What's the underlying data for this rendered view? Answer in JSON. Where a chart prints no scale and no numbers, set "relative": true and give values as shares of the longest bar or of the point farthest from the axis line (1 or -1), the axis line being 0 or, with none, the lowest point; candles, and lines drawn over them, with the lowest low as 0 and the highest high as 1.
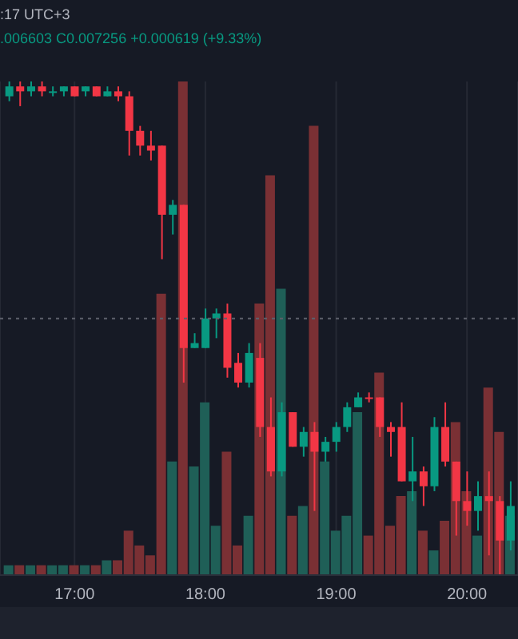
{
  "chart_data": {
    "type": "candlestick",
    "relative": true,
    "annotations": [
      ":17 UTC+3",
      ".006603 C0.007256 +0.000619 (+9.33%)"
    ],
    "x": [
      16.5,
      16.583,
      16.667,
      16.75,
      16.833,
      16.917,
      17,
      17.083,
      17.167,
      17.25,
      17.333,
      17.417,
      17.5,
      17.583,
      17.667,
      17.75,
      17.833,
      17.917,
      18,
      18.083,
      18.167,
      18.25,
      18.333,
      18.417,
      18.5,
      18.583,
      18.667,
      18.75,
      18.833,
      18.917,
      19,
      19.083,
      19.167,
      19.25,
      19.333,
      19.417,
      19.5,
      19.583,
      19.667,
      19.75,
      19.833,
      19.917,
      20,
      20.083,
      20.167,
      20.25,
      20.333
    ],
    "ohlc": [
      [
        0.97,
        1.0,
        0.96,
        0.99
      ],
      [
        0.99,
        1.0,
        0.95,
        0.98
      ],
      [
        0.98,
        1.0,
        0.97,
        0.99
      ],
      [
        0.99,
        1.0,
        0.97,
        0.98
      ],
      [
        0.98,
        0.99,
        0.97,
        0.98
      ],
      [
        0.98,
        0.99,
        0.97,
        0.99
      ],
      [
        0.99,
        0.99,
        0.97,
        0.97
      ],
      [
        0.98,
        0.99,
        0.97,
        0.99
      ],
      [
        0.99,
        0.99,
        0.97,
        0.97
      ],
      [
        0.97,
        0.99,
        0.97,
        0.98
      ],
      [
        0.98,
        0.99,
        0.96,
        0.97
      ],
      [
        0.97,
        0.98,
        0.85,
        0.9
      ],
      [
        0.9,
        0.91,
        0.85,
        0.87
      ],
      [
        0.87,
        0.9,
        0.84,
        0.86
      ],
      [
        0.87,
        0.87,
        0.64,
        0.73
      ],
      [
        0.73,
        0.76,
        0.69,
        0.75
      ],
      [
        0.75,
        0.75,
        0.39,
        0.46
      ],
      [
        0.46,
        0.49,
        0.46,
        0.47
      ],
      [
        0.46,
        0.54,
        0.46,
        0.52
      ],
      [
        0.52,
        0.54,
        0.48,
        0.53
      ],
      [
        0.53,
        0.55,
        0.4,
        0.42
      ],
      [
        0.43,
        0.45,
        0.38,
        0.39
      ],
      [
        0.39,
        0.47,
        0.38,
        0.45
      ],
      [
        0.44,
        0.47,
        0.28,
        0.3
      ],
      [
        0.3,
        0.36,
        0.2,
        0.21
      ],
      [
        0.21,
        0.35,
        0.2,
        0.33
      ],
      [
        0.33,
        0.33,
        0.26,
        0.26
      ],
      [
        0.26,
        0.3,
        0.24,
        0.29
      ],
      [
        0.29,
        0.31,
        0.13,
        0.25
      ],
      [
        0.25,
        0.28,
        0.23,
        0.27
      ],
      [
        0.27,
        0.31,
        0.25,
        0.3
      ],
      [
        0.3,
        0.35,
        0.29,
        0.34
      ],
      [
        0.34,
        0.37,
        0.34,
        0.36
      ],
      [
        0.36,
        0.37,
        0.35,
        0.36
      ],
      [
        0.36,
        0.36,
        0.28,
        0.3
      ],
      [
        0.3,
        0.31,
        0.24,
        0.29
      ],
      [
        0.3,
        0.35,
        0.19,
        0.19
      ],
      [
        0.19,
        0.28,
        0.15,
        0.21
      ],
      [
        0.21,
        0.22,
        0.14,
        0.18
      ],
      [
        0.18,
        0.32,
        0.17,
        0.3
      ],
      [
        0.3,
        0.35,
        0.22,
        0.23
      ],
      [
        0.23,
        0.23,
        0.08,
        0.15
      ],
      [
        0.15,
        0.21,
        0.1,
        0.13
      ],
      [
        0.13,
        0.19,
        0.09,
        0.16
      ],
      [
        0.16,
        0.21,
        0.04,
        0.15
      ],
      [
        0.15,
        0.16,
        0,
        0.07
      ],
      [
        0.07,
        0.19,
        0.05,
        0.14
      ]
    ],
    "colors": [
      "#089981",
      "#f23645",
      "#089981",
      "#f23645",
      "#089981",
      "#089981",
      "#f23645",
      "#089981",
      "#f23645",
      "#089981",
      "#f23645",
      "#f23645",
      "#f23645",
      "#f23645",
      "#f23645",
      "#089981",
      "#f23645",
      "#089981",
      "#089981",
      "#089981",
      "#f23645",
      "#f23645",
      "#089981",
      "#f23645",
      "#f23645",
      "#089981",
      "#f23645",
      "#089981",
      "#f23645",
      "#089981",
      "#089981",
      "#089981",
      "#089981",
      "#f23645",
      "#f23645",
      "#f23645",
      "#f23645",
      "#089981",
      "#f23645",
      "#089981",
      "#f23645",
      "#f23645",
      "#f23645",
      "#089981",
      "#f23645",
      "#f23645",
      "#089981"
    ],
    "series": [
      {
        "type": "bar",
        "values": [
          0.02,
          0.02,
          0.02,
          0.02,
          0.02,
          0.02,
          0.02,
          0.02,
          0.02,
          0.03,
          0.03,
          0.09,
          0.06,
          0.04,
          0.57,
          0.23,
          1,
          0.22,
          0.35,
          0.1,
          0.25,
          0.06,
          0.12,
          0.55,
          0.81,
          0.58,
          0.12,
          0.14,
          0.91,
          0.23,
          0.09,
          0.12,
          0.33,
          0.08,
          0.41,
          0.1,
          0.16,
          0.17,
          0.09,
          0.05,
          0.11,
          0.31,
          0.17,
          0.08,
          0.38,
          0.29,
          0.12
        ],
        "colors": [
          "#1f5f57",
          "#7a3034",
          "#1f5f57",
          "#7a3034",
          "#1f5f57",
          "#1f5f57",
          "#7a3034",
          "#1f5f57",
          "#7a3034",
          "#1f5f57",
          "#7a3034",
          "#7a3034",
          "#7a3034",
          "#7a3034",
          "#7a3034",
          "#1f5f57",
          "#7a3034",
          "#1f5f57",
          "#1f5f57",
          "#1f5f57",
          "#7a3034",
          "#7a3034",
          "#1f5f57",
          "#7a3034",
          "#7a3034",
          "#1f5f57",
          "#7a3034",
          "#1f5f57",
          "#7a3034",
          "#1f5f57",
          "#1f5f57",
          "#1f5f57",
          "#1f5f57",
          "#7a3034",
          "#7a3034",
          "#7a3034",
          "#7a3034",
          "#1f5f57",
          "#7a3034",
          "#1f5f57",
          "#7a3034",
          "#7a3034",
          "#7a3034",
          "#1f5f57",
          "#7a3034",
          "#7a3034",
          "#1f5f57"
        ]
      }
    ],
    "xlim": [
      16.43,
      20.39
    ],
    "xticks": [
      {
        "value": 17,
        "label": "17:00"
      },
      {
        "value": 18,
        "label": "18:00"
      },
      {
        "value": 19,
        "label": "19:00"
      },
      {
        "value": 20,
        "label": "20:00"
      }
    ],
    "grid": "x",
    "ref_lines": [
      {
        "axis": "y",
        "value": 0.52,
        "color": "#5d606b",
        "line_style": "dotted"
      }
    ]
  }
}
